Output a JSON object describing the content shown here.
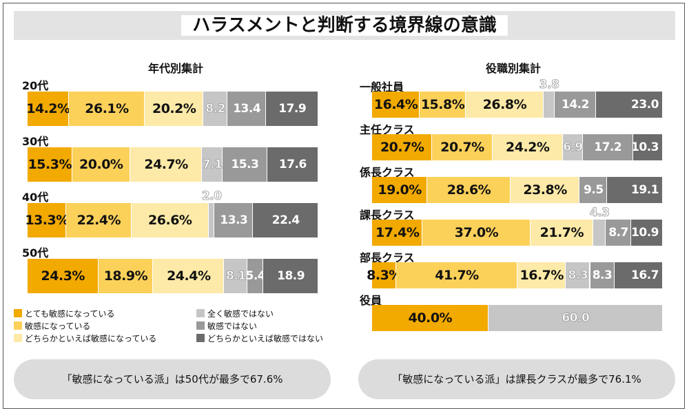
{
  "title": "ハラスメントと判断する境界線の意識",
  "colors": {
    "c1": "#f2a900",
    "c2": "#fcd15a",
    "c3": "#fdeaa8",
    "c4": "#c6c6c6",
    "c5": "#999999",
    "c6": "#6b6b6b"
  },
  "legend": [
    "とても敏感になっている",
    "敏感になっている",
    "どちらかといえば敏感になっている",
    "全く敏感ではない",
    "敏感ではない",
    "どちらかといえば敏感ではない"
  ],
  "chart_data": [
    {
      "type": "bar",
      "orientation": "horizontal-stacked-100",
      "title": "年代別集計",
      "categories": [
        "20代",
        "30代",
        "40代",
        "50代"
      ],
      "series": [
        {
          "name": "とても敏感になっている",
          "values": [
            14.2,
            15.3,
            13.3,
            24.3
          ],
          "labels": [
            "14.2%",
            "15.3%",
            "13.3%",
            "24.3%"
          ]
        },
        {
          "name": "敏感になっている",
          "values": [
            26.1,
            20.0,
            22.4,
            18.9
          ],
          "labels": [
            "26.1%",
            "20.0%",
            "22.4%",
            "18.9%"
          ]
        },
        {
          "name": "どちらかといえば敏感になっている",
          "values": [
            20.2,
            24.7,
            26.6,
            24.4
          ],
          "labels": [
            "20.2%",
            "24.7%",
            "26.6%",
            "24.4%"
          ]
        },
        {
          "name": "全く敏感ではない",
          "values": [
            8.2,
            7.1,
            2.0,
            8.1
          ],
          "labels": [
            "8.2",
            "7.1",
            "2.0",
            "8.1"
          ]
        },
        {
          "name": "敏感ではない",
          "values": [
            13.4,
            15.3,
            13.3,
            5.4
          ],
          "labels": [
            "13.4",
            "15.3",
            "13.3",
            "5.4"
          ]
        },
        {
          "name": "どちらかといえば敏感ではない",
          "values": [
            17.9,
            17.6,
            22.4,
            18.9
          ],
          "labels": [
            "17.9",
            "17.6",
            "22.4",
            "18.9"
          ]
        }
      ],
      "summary": "「敏感になっている派」は50代が最多で67.6%"
    },
    {
      "type": "bar",
      "orientation": "horizontal-stacked-100",
      "title": "役職別集計",
      "categories": [
        "一般社員",
        "主任クラス",
        "係長クラス",
        "課長クラス",
        "部長クラス",
        "役員"
      ],
      "series": [
        {
          "name": "とても敏感になっている",
          "values": [
            16.4,
            20.7,
            19.0,
            17.4,
            8.3,
            40.0
          ],
          "labels": [
            "16.4%",
            "20.7%",
            "19.0%",
            "17.4%",
            "8.3%",
            "40.0%"
          ]
        },
        {
          "name": "敏感になっている",
          "values": [
            15.8,
            20.7,
            28.6,
            37.0,
            41.7,
            0
          ],
          "labels": [
            "15.8%",
            "20.7%",
            "28.6%",
            "37.0%",
            "41.7%",
            ""
          ]
        },
        {
          "name": "どちらかといえば敏感になっている",
          "values": [
            26.8,
            24.2,
            23.8,
            21.7,
            16.7,
            0
          ],
          "labels": [
            "26.8%",
            "24.2%",
            "23.8%",
            "21.7%",
            "16.7%",
            ""
          ]
        },
        {
          "name": "全く敏感ではない",
          "values": [
            3.8,
            6.9,
            0,
            4.3,
            8.3,
            60.0
          ],
          "labels": [
            "3.8",
            "6.9",
            "",
            "4.3",
            "8.3",
            "60.0"
          ]
        },
        {
          "name": "敏感ではない",
          "values": [
            14.2,
            17.2,
            9.5,
            8.7,
            8.3,
            0
          ],
          "labels": [
            "14.2",
            "17.2",
            "9.5",
            "8.7",
            "8.3",
            ""
          ]
        },
        {
          "name": "どちらかといえば敏感ではない",
          "values": [
            23.0,
            10.3,
            19.1,
            10.9,
            16.7,
            0
          ],
          "labels": [
            "23.0",
            "10.3",
            "19.1",
            "10.9",
            "16.7",
            ""
          ]
        }
      ],
      "summary": "「敏感になっている派」は課長クラスが最多で76.1%"
    }
  ]
}
